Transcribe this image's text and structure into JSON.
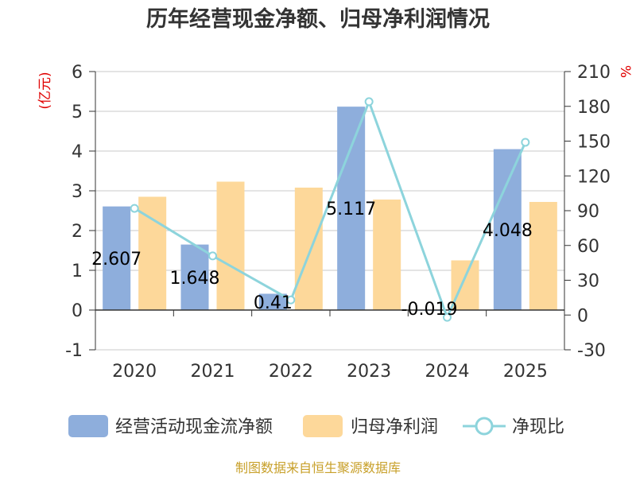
{
  "chart_data": {
    "type": "bar",
    "title": "历年经营现金净额、归母净利润情况",
    "categories": [
      "2020",
      "2021",
      "2022",
      "2023",
      "2024",
      "2025"
    ],
    "series": [
      {
        "name": "经营活动现金流净额",
        "type": "bar",
        "axis": "left",
        "color": "#8eaedc",
        "values": [
          2.607,
          1.648,
          0.41,
          5.117,
          -0.019,
          4.048
        ]
      },
      {
        "name": "归母净利润",
        "type": "bar",
        "axis": "left",
        "color": "#fdd89a",
        "values": [
          2.85,
          3.23,
          3.08,
          2.78,
          1.25,
          2.72
        ]
      },
      {
        "name": "净现比",
        "type": "line",
        "axis": "right",
        "color": "#8dd4dc",
        "values": [
          92,
          51,
          13,
          184,
          -2,
          149
        ]
      }
    ],
    "data_labels": [
      "2.607",
      "1.648",
      "0.41",
      "5.117",
      "-0.019",
      "4.048"
    ],
    "y_left": {
      "label": "(亿元)",
      "min": -1,
      "max": 6,
      "ticks": [
        -1,
        0,
        1,
        2,
        3,
        4,
        5,
        6
      ]
    },
    "y_right": {
      "label": "%",
      "min": -30,
      "max": 210,
      "ticks": [
        -30,
        0,
        30,
        60,
        90,
        120,
        150,
        180,
        210
      ]
    },
    "grid": true,
    "legend_position": "bottom"
  },
  "footer": {
    "source": "制图数据来自恒生聚源数据库"
  }
}
